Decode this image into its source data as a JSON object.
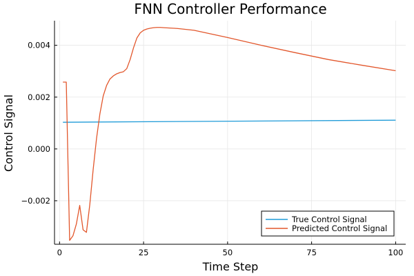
{
  "chart_data": {
    "type": "line",
    "title": "FNN Controller Performance",
    "xlabel": "Time Step",
    "ylabel": "Control Signal",
    "xlim": [
      -1.5,
      103
    ],
    "ylim": [
      -0.00368,
      0.00495
    ],
    "xticks": [
      0,
      25,
      50,
      75,
      100
    ],
    "xtick_labels": [
      "0",
      "25",
      "50",
      "75",
      "100"
    ],
    "yticks": [
      -0.002,
      0.0,
      0.002,
      0.004
    ],
    "ytick_labels": [
      "−0.002",
      "0.000",
      "0.002",
      "0.004"
    ],
    "grid": true,
    "legend_position": "bottom-right",
    "series": [
      {
        "name": "True Control Signal",
        "color": "#1f9bd8",
        "x": [
          1,
          100
        ],
        "y": [
          0.00103,
          0.00111
        ]
      },
      {
        "name": "Predicted Control Signal",
        "color": "#e2562b",
        "x": [
          1,
          2,
          3,
          4,
          5,
          6,
          7,
          8,
          9,
          10,
          11,
          12,
          13,
          14,
          15,
          16,
          17,
          18,
          19,
          20,
          21,
          22,
          23,
          24,
          25,
          26,
          27,
          28,
          29,
          30,
          31,
          35,
          40,
          50,
          60,
          70,
          80,
          90,
          100
        ],
        "y": [
          0.00258,
          0.00258,
          -0.00353,
          -0.00335,
          -0.0029,
          -0.00218,
          -0.00312,
          -0.00322,
          -0.00215,
          -0.0008,
          0.0004,
          0.00135,
          0.00205,
          0.00245,
          0.0027,
          0.00282,
          0.0029,
          0.00295,
          0.00298,
          0.0031,
          0.00345,
          0.0039,
          0.00428,
          0.00448,
          0.00458,
          0.00463,
          0.00466,
          0.00468,
          0.00469,
          0.00469,
          0.00468,
          0.00465,
          0.00458,
          0.0043,
          0.004,
          0.00372,
          0.00345,
          0.00323,
          0.00302
        ]
      }
    ]
  }
}
